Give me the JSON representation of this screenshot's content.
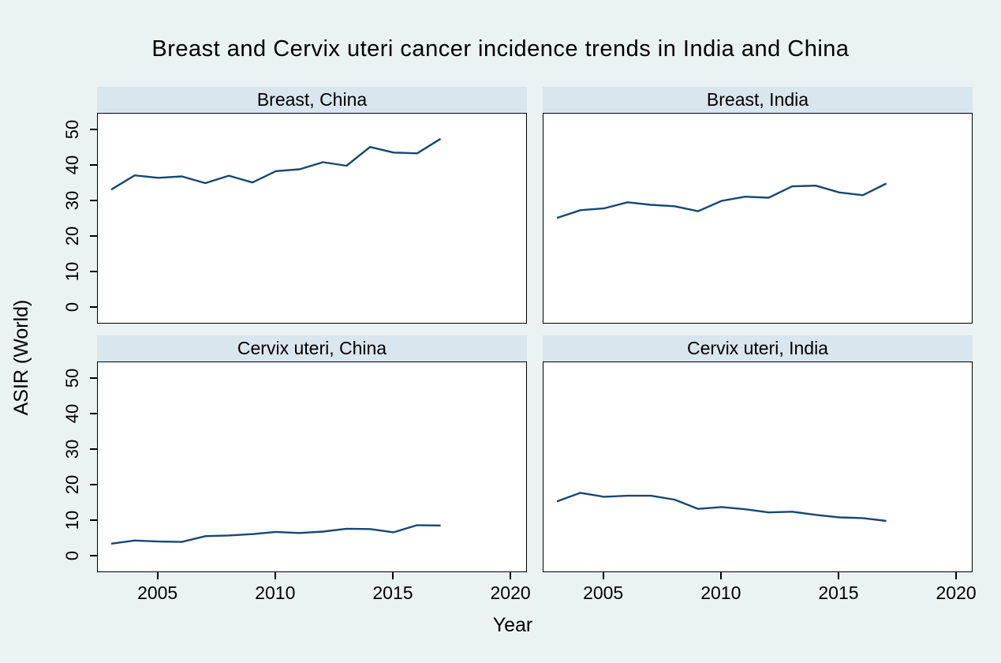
{
  "title": "Breast and Cervix uteri cancer incidence trends in India and China",
  "colors": {
    "background": "#eaf2f3",
    "panel_header": "#d9e6ee",
    "plot_background": "#ffffff",
    "line": "#1a476f",
    "axis": "#000000",
    "text": "#000000"
  },
  "chart_data": {
    "type": "line",
    "title": "Breast and Cervix uteri cancer incidence trends in India and China",
    "xlabel": "Year",
    "ylabel": "ASIR (World)",
    "layout": "2x2 small multiples, shared axes, no grid, no legend",
    "x": [
      2003,
      2004,
      2005,
      2006,
      2007,
      2008,
      2009,
      2010,
      2011,
      2012,
      2013,
      2014,
      2015,
      2016,
      2017
    ],
    "xticks": [
      2005,
      2010,
      2015,
      2020
    ],
    "xlim": [
      2002.4,
      2020.7
    ],
    "yticks": [
      0,
      10,
      20,
      30,
      40,
      50
    ],
    "ylim": [
      0,
      54.5
    ],
    "grid": false,
    "legend": "none",
    "panels": [
      {
        "id": "breast-china",
        "title": "Breast, China",
        "values": [
          33.3,
          37.3,
          36.6,
          37.0,
          35.1,
          37.2,
          35.3,
          38.5,
          39.0,
          41.0,
          40.0,
          45.3,
          43.7,
          43.5,
          47.6
        ]
      },
      {
        "id": "breast-india",
        "title": "Breast, India",
        "values": [
          25.3,
          27.5,
          28.0,
          29.7,
          29.0,
          28.6,
          27.2,
          30.1,
          31.3,
          31.0,
          34.2,
          34.4,
          32.5,
          31.7,
          35.0
        ]
      },
      {
        "id": "cervix-uteri-china",
        "title": "Cervix uteri, China",
        "values": [
          3.6,
          4.5,
          4.2,
          4.1,
          5.7,
          5.9,
          6.3,
          6.9,
          6.6,
          7.0,
          7.8,
          7.7,
          6.8,
          8.8,
          8.7
        ]
      },
      {
        "id": "cervix-uteri-india",
        "title": "Cervix uteri, India",
        "values": [
          15.5,
          17.9,
          16.8,
          17.1,
          17.1,
          16.0,
          13.4,
          13.9,
          13.3,
          12.4,
          12.6,
          11.7,
          11.0,
          10.8,
          10.0
        ]
      }
    ]
  }
}
